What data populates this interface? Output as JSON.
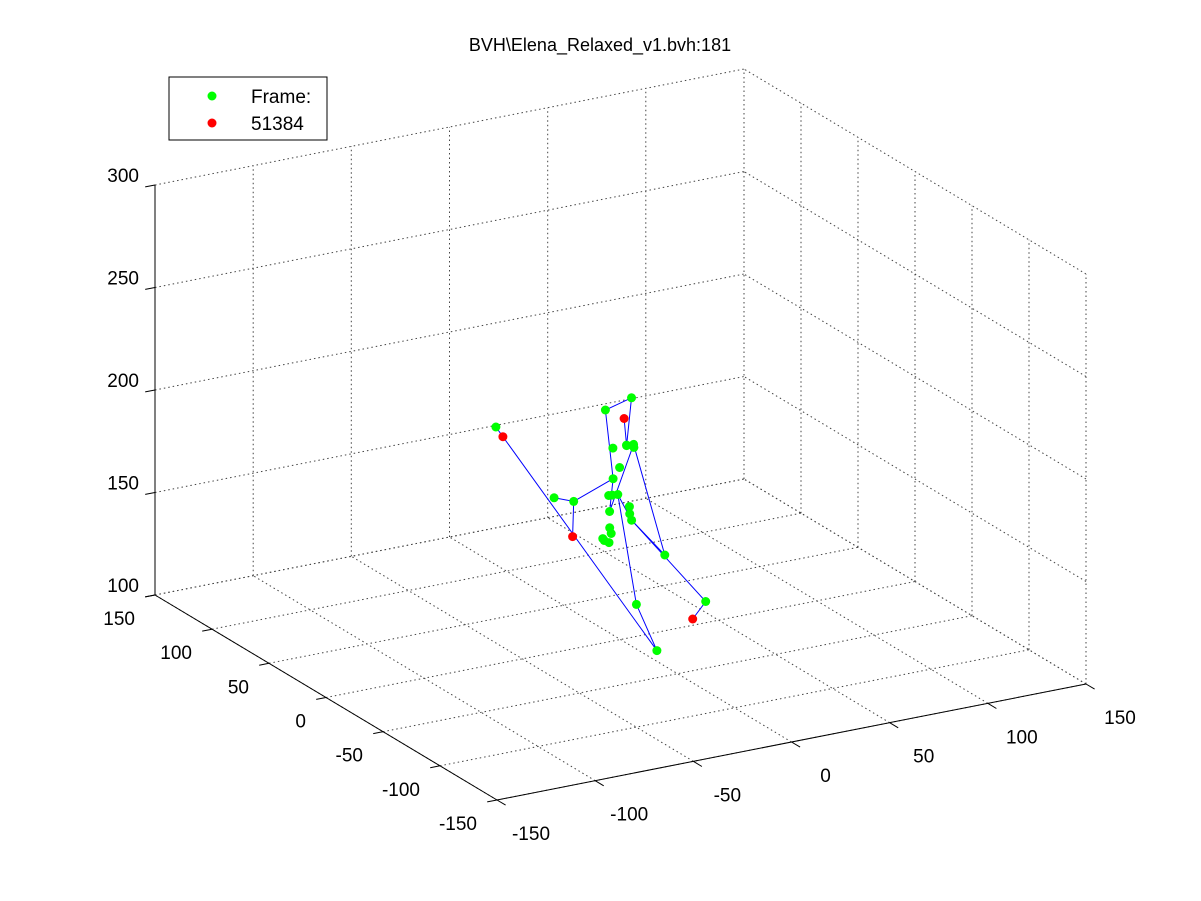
{
  "chart_data": {
    "type": "scatter",
    "title": "BVH\\Elena_Relaxed_v1.bvh:181",
    "xlabel": "",
    "ylabel": "",
    "zlabel": "",
    "xlim": [
      -150,
      150
    ],
    "ylim": [
      -150,
      150
    ],
    "zlim": [
      100,
      300
    ],
    "x_ticks": [
      "-150",
      "-100",
      "-50",
      "0",
      "50",
      "100",
      "150"
    ],
    "y_ticks": [
      "-150",
      "-100",
      "-50",
      "0",
      "50",
      "100",
      "150"
    ],
    "z_ticks": [
      "100",
      "150",
      "200",
      "250",
      "300"
    ],
    "grid": true,
    "box": false,
    "legend_position": "top-left",
    "legend": [
      {
        "label": "Frame:",
        "color": "#00ff00"
      },
      {
        "label": "51384",
        "color": "#ff0000"
      }
    ],
    "colors": {
      "bone": "#0000ff",
      "joint": "#00ff00",
      "end_site": "#ff0000",
      "grid": "#444444"
    },
    "series": [
      {
        "kind": "joints",
        "color": "#00ff00",
        "points": [
          {
            "x": 12.8,
            "y": 36.3,
            "z": 133.8
          },
          {
            "x": 11.6,
            "y": 35.5,
            "z": 135.2
          },
          {
            "x": 14.8,
            "y": 35.6,
            "z": 132.6
          },
          {
            "x": 13.9,
            "y": 32.1,
            "z": 138.4
          },
          {
            "x": 12.9,
            "y": 31.7,
            "z": 141.5
          },
          {
            "x": 12.5,
            "y": 23.9,
            "z": 160.4
          },
          {
            "x": 8.6,
            "y": 25.2,
            "z": 160.2
          },
          {
            "x": 13.0,
            "y": 29.6,
            "z": 158.1
          },
          {
            "x": 15.9,
            "y": 28.2,
            "z": 171.5
          },
          {
            "x": 13.3,
            "y": 29.6,
            "z": 181.0
          },
          {
            "x": 24.2,
            "y": 54.9,
            "z": 189.1
          },
          {
            "x": 33.7,
            "y": 48.4,
            "z": 195.4
          },
          {
            "x": 5.4,
            "y": 18.9,
            "z": 155.1
          },
          {
            "x": 12.4,
            "y": 11.6,
            "z": 152.0
          },
          {
            "x": 10.6,
            "y": 10.2,
            "z": 155.9
          },
          {
            "x": 10.9,
            "y": 11.0,
            "z": 159.1
          },
          {
            "x": 9.8,
            "y": 23.4,
            "z": 168.8
          },
          {
            "x": 13.5,
            "y": 17.9,
            "z": 186.3
          },
          {
            "x": 10.4,
            "y": 6.4,
            "z": 191.1
          },
          {
            "x": 9.3,
            "y": 4.3,
            "z": 190.5
          },
          {
            "x": 5.2,
            "y": 3.6,
            "z": 192.4
          },
          {
            "x": -18.2,
            "y": 26.9,
            "z": 163.6
          },
          {
            "x": -8.3,
            "y": 26.8,
            "z": 160.0
          },
          {
            "x": 1.4,
            "y": -11.5,
            "z": 120.7
          },
          {
            "x": 1.9,
            "y": -28.7,
            "z": 103.8
          },
          {
            "x": 14.4,
            "y": -14.1,
            "z": 143.2
          },
          {
            "x": 31.9,
            "y": -19.8,
            "z": 119.1
          },
          {
            "x": -34.1,
            "y": 50.6,
            "z": 193.2
          }
        ]
      },
      {
        "kind": "end_sites",
        "color": "#ff0000",
        "points": [
          {
            "x": 7.0,
            "y": 8.9,
            "z": 203.5
          },
          {
            "x": -11.7,
            "y": 21.9,
            "z": 145.1
          },
          {
            "x": 28.6,
            "y": -14.1,
            "z": 109.3
          },
          {
            "x": -30.5,
            "y": 50.6,
            "z": 187.8
          }
        ]
      }
    ],
    "bones": [
      [
        [
          -34.1,
          50.6,
          193.2
        ],
        [
          -30.5,
          50.6,
          187.8
        ],
        [
          1.9,
          -28.7,
          103.8
        ],
        [
          1.4,
          -11.5,
          120.7
        ],
        [
          12.5,
          23.9,
          160.4
        ],
        [
          12.4,
          11.6,
          152.0
        ],
        [
          31.9,
          -19.8,
          119.1
        ],
        [
          28.6,
          -14.1,
          109.3
        ]
      ],
      [
        [
          -18.2,
          26.9,
          163.6
        ],
        [
          -8.3,
          26.8,
          160.0
        ],
        [
          -11.7,
          21.9,
          145.1
        ]
      ],
      [
        [
          -8.3,
          26.8,
          160.0
        ],
        [
          9.8,
          23.4,
          168.8
        ],
        [
          5.4,
          18.9,
          155.1
        ],
        [
          10.4,
          6.4,
          191.1
        ],
        [
          5.2,
          3.6,
          192.4
        ],
        [
          7.0,
          8.9,
          203.5
        ]
      ],
      [
        [
          10.4,
          6.4,
          191.1
        ],
        [
          14.4,
          -14.1,
          143.2
        ],
        [
          12.4,
          11.6,
          152.0
        ]
      ],
      [
        [
          9.8,
          23.4,
          168.8
        ],
        [
          24.2,
          54.9,
          189.1
        ],
        [
          33.7,
          48.4,
          195.4
        ],
        [
          5.2,
          3.6,
          192.4
        ]
      ]
    ]
  }
}
